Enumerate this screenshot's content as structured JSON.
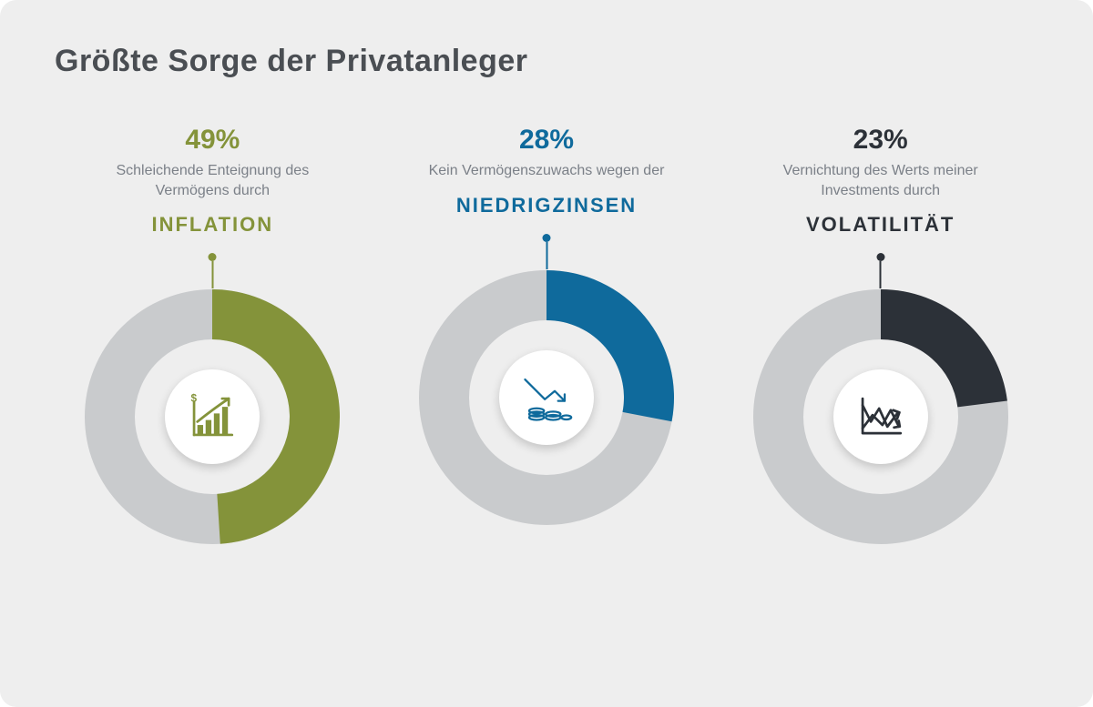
{
  "title": "Größte Sorge der Privatanleger",
  "background_color": "#eeeeee",
  "donut_track_color": "#c9cbcd",
  "donut_outer_radius": 140,
  "donut_inner_radius": 85,
  "center_circle_color": "#ffffff",
  "title_color": "#4a4e53",
  "desc_color": "#7b8088",
  "items": [
    {
      "pct_label": "49%",
      "pct_value": 49,
      "desc": "Schleichende Enteignung des Vermögens durch",
      "keyword": "INFLATION",
      "accent_color": "#84933a",
      "icon": "growth"
    },
    {
      "pct_label": "28%",
      "pct_value": 28,
      "desc": "Kein Vermögenszuwachs wegen der",
      "keyword": "NIEDRIGZINSEN",
      "accent_color": "#0f6a9c",
      "icon": "decline-coins"
    },
    {
      "pct_label": "23%",
      "pct_value": 23,
      "desc": "Vernichtung des Werts meiner Investments durch",
      "keyword": "VOLATILITÄT",
      "accent_color": "#2c3138",
      "icon": "volatility"
    }
  ]
}
